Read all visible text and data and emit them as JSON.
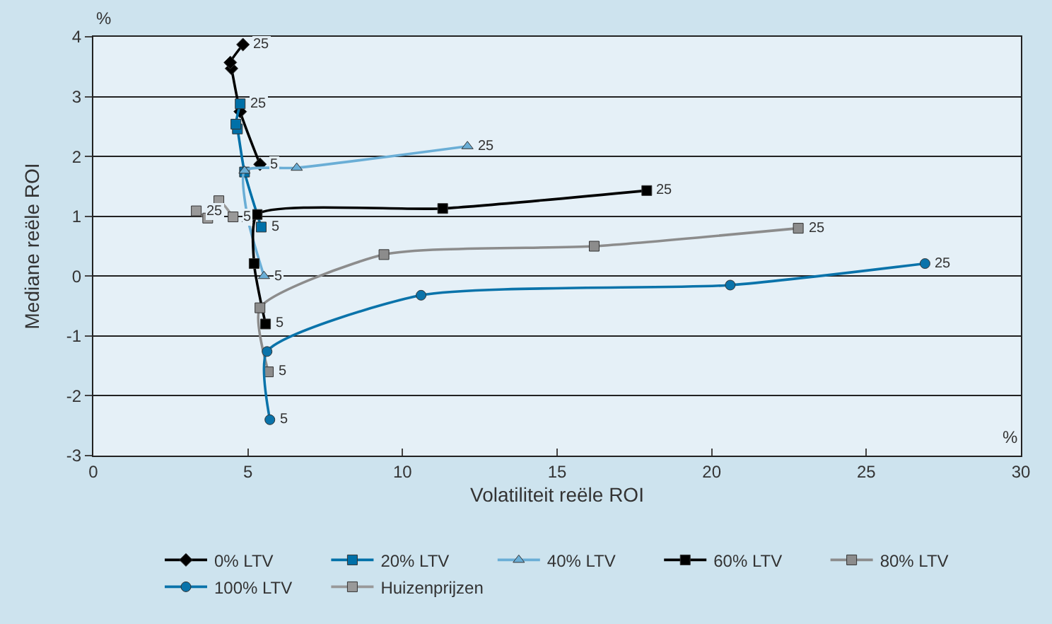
{
  "chart_data": {
    "type": "line",
    "xlabel": "Volatiliteit reële ROI",
    "ylabel": "Mediane reële ROI",
    "xlim": [
      0,
      30
    ],
    "xticks": [
      0,
      5,
      10,
      15,
      20,
      25,
      30
    ],
    "ylim": [
      -3,
      4
    ],
    "yticks": [
      -3,
      -2,
      -1,
      0,
      1,
      2,
      3,
      4
    ],
    "grid": "y",
    "legend": "bottom",
    "series": [
      {
        "name": "0% LTV",
        "color": "#000000",
        "marker": "diamond",
        "x": [
          5.39,
          4.75,
          4.47,
          4.43,
          4.84
        ],
        "values": [
          1.87,
          2.75,
          3.47,
          3.57,
          3.87
        ]
      },
      {
        "name": "20% LTV",
        "color": "#0070a8",
        "marker": "square",
        "x": [
          5.43,
          4.89,
          4.66,
          4.61,
          4.75
        ],
        "values": [
          0.82,
          1.74,
          2.46,
          2.54,
          2.88
        ]
      },
      {
        "name": "40% LTV",
        "color": "#6aaed6",
        "marker": "triangle",
        "x": [
          5.52,
          5.0,
          4.89,
          6.58,
          12.1
        ],
        "values": [
          0.0,
          0.95,
          1.76,
          1.81,
          2.17
        ]
      },
      {
        "name": "60% LTV",
        "color": "#000000",
        "marker": "square",
        "x": [
          5.57,
          5.2,
          5.3,
          11.3,
          17.9
        ],
        "values": [
          -0.8,
          0.21,
          1.03,
          1.13,
          1.43
        ]
      },
      {
        "name": "80% LTV",
        "color": "#8c8c8c",
        "marker": "square",
        "x": [
          5.66,
          5.39,
          9.4,
          16.2,
          22.8
        ],
        "values": [
          -1.6,
          -0.53,
          0.36,
          0.5,
          0.8
        ]
      },
      {
        "name": "100% LTV",
        "color": "#0a73aa",
        "marker": "circle",
        "x": [
          5.71,
          5.62,
          10.6,
          20.6,
          26.9
        ],
        "values": [
          -2.4,
          -1.26,
          -0.32,
          -0.15,
          0.21
        ]
      },
      {
        "name": "Huizenprijzen",
        "color": "#999999",
        "marker": "square",
        "x": [
          4.52,
          4.06,
          3.7,
          3.33
        ],
        "values": [
          0.99,
          1.26,
          0.97,
          1.09
        ]
      }
    ],
    "annotations": [
      "%",
      "%",
      {
        "text": "25",
        "x": 4.84,
        "y": 3.87
      },
      {
        "text": "5",
        "x": 5.39,
        "y": 1.87
      },
      {
        "text": "25",
        "x": 4.75,
        "y": 2.88
      },
      {
        "text": "5",
        "x": 5.43,
        "y": 0.82
      },
      {
        "text": "25",
        "x": 12.1,
        "y": 2.17
      },
      {
        "text": "5",
        "x": 5.52,
        "y": 0.0
      },
      {
        "text": "25",
        "x": 17.9,
        "y": 1.43
      },
      {
        "text": "5",
        "x": 5.57,
        "y": -0.8
      },
      {
        "text": "25",
        "x": 22.8,
        "y": 0.8
      },
      {
        "text": "5",
        "x": 5.66,
        "y": -1.6
      },
      {
        "text": "25",
        "x": 26.9,
        "y": 0.21
      },
      {
        "text": "5",
        "x": 5.71,
        "y": -2.4
      },
      {
        "text": "25",
        "x": 3.33,
        "y": 1.09
      },
      {
        "text": "5",
        "x": 4.52,
        "y": 0.99
      }
    ]
  }
}
